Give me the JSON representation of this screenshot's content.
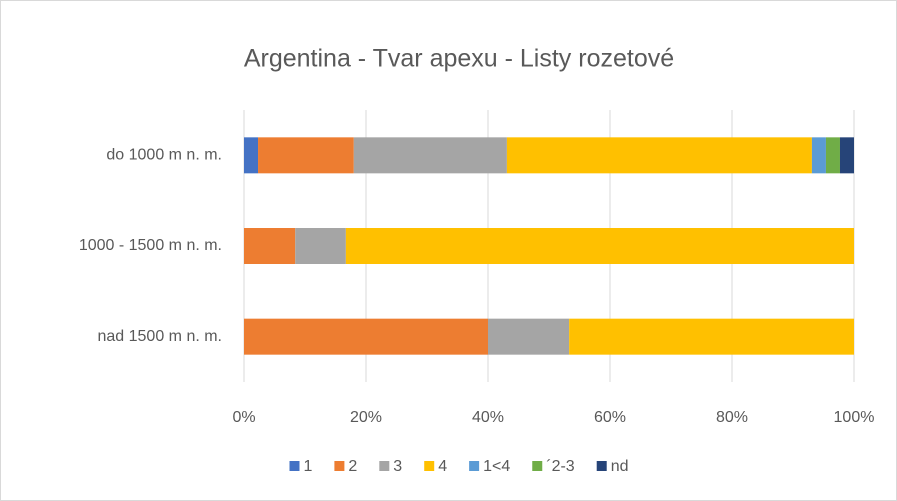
{
  "chart_data": {
    "type": "stacked-bar-horizontal",
    "title": "Argentina - Tvar apexu - Listy rozetové",
    "categories": [
      "do 1000 m n. m.",
      "1000 - 1500 m n. m.",
      "nad 1500 m n. m."
    ],
    "series": [
      {
        "name": "1",
        "color": "#4472c4",
        "values": [
          2.3,
          0,
          0
        ]
      },
      {
        "name": "2",
        "color": "#ed7d31",
        "values": [
          15.7,
          8.4,
          40
        ]
      },
      {
        "name": "3",
        "color": "#a5a5a5",
        "values": [
          25.1,
          8.3,
          13.3
        ]
      },
      {
        "name": "4",
        "color": "#ffc000",
        "values": [
          50,
          83.3,
          46.7
        ]
      },
      {
        "name": "1<4",
        "color": "#5b9bd5",
        "values": [
          2.3,
          0,
          0
        ]
      },
      {
        "name": "´2-3",
        "color": "#70ad47",
        "values": [
          2.3,
          0,
          0
        ]
      },
      {
        "name": "nd",
        "color": "#264478",
        "values": [
          2.3,
          0,
          0
        ]
      }
    ],
    "xlim": [
      0,
      100
    ],
    "xticks": [
      {
        "value": 0,
        "label": "0%"
      },
      {
        "value": 20,
        "label": "20%"
      },
      {
        "value": 40,
        "label": "40%"
      },
      {
        "value": 60,
        "label": "60%"
      },
      {
        "value": 80,
        "label": "80%"
      },
      {
        "value": 100,
        "label": "100%"
      }
    ],
    "grid": true,
    "legend": "bottom"
  }
}
